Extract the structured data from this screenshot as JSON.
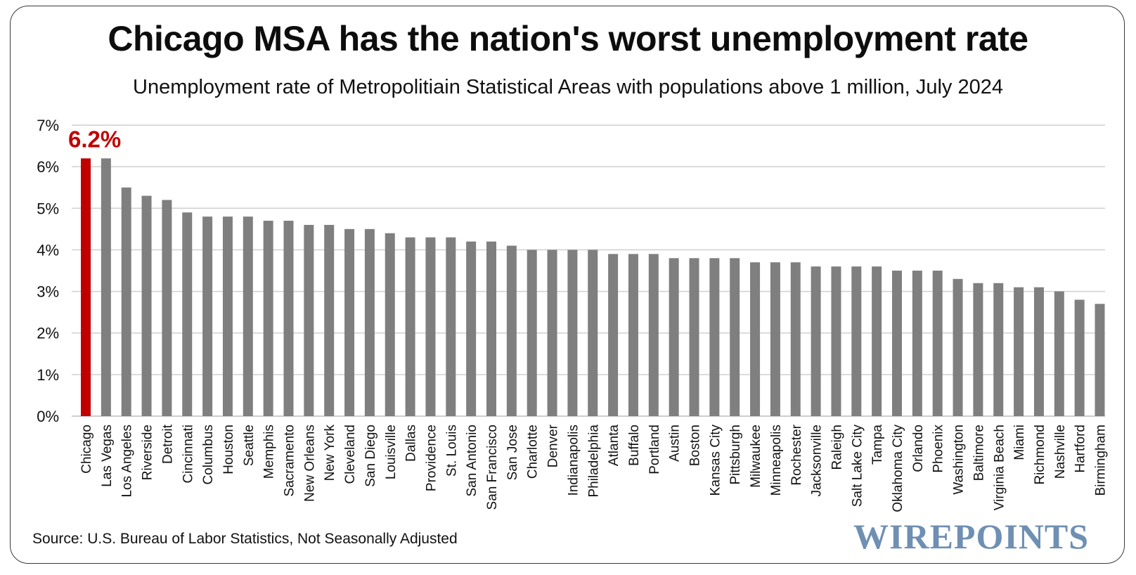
{
  "title": "Chicago MSA has the nation's worst unemployment rate",
  "subtitle": "Unemployment rate of Metropolitiain Statistical Areas with populations above 1 million, July 2024",
  "source": "Source: U.S. Bureau of Labor Statistics, Not Seasonally Adjusted",
  "logo_text": "WIREPOINTS",
  "colors": {
    "highlight": "#c00000",
    "bar": "#7f7f7f",
    "grid": "#d0d0d0",
    "logo": "#6f8fb3"
  },
  "chart_data": {
    "type": "bar",
    "title": "Chicago MSA has the nation's worst unemployment rate",
    "subtitle": "Unemployment rate of Metropolitiain Statistical Areas with populations above 1 million, July 2024",
    "xlabel": "",
    "ylabel": "",
    "ylim": [
      0,
      7
    ],
    "yticks": [
      "0%",
      "1%",
      "2%",
      "3%",
      "4%",
      "5%",
      "6%",
      "7%"
    ],
    "grid": true,
    "highlight": {
      "category": "Chicago",
      "label": "6.2%"
    },
    "categories": [
      "Chicago",
      "Las Vegas",
      "Los Angeles",
      "Riverside",
      "Detroit",
      "Cincinnati",
      "Columbus",
      "Houston",
      "Seattle",
      "Memphis",
      "Sacramento",
      "New Orleans",
      "New York",
      "Cleveland",
      "San Diego",
      "Louisville",
      "Dallas",
      "Providence",
      "St. Louis",
      "San Antonio",
      "San Francisco",
      "San Jose",
      "Charlotte",
      "Denver",
      "Indianapolis",
      "Philadelphia",
      "Atlanta",
      "Buffalo",
      "Portland",
      "Austin",
      "Boston",
      "Kansas City",
      "Pittsburgh",
      "Milwaukee",
      "Minneapolis",
      "Rochester",
      "Jacksonville",
      "Raleigh",
      "Salt Lake City",
      "Tampa",
      "Oklahoma City",
      "Orlando",
      "Phoenix",
      "Washington",
      "Baltimore",
      "Virginia Beach",
      "Miami",
      "Richmond",
      "Nashville",
      "Hartford",
      "Birmingham"
    ],
    "values": [
      6.2,
      6.2,
      5.5,
      5.3,
      5.2,
      4.9,
      4.8,
      4.8,
      4.8,
      4.7,
      4.7,
      4.6,
      4.6,
      4.5,
      4.5,
      4.4,
      4.3,
      4.3,
      4.3,
      4.2,
      4.2,
      4.1,
      4.0,
      4.0,
      4.0,
      4.0,
      3.9,
      3.9,
      3.9,
      3.8,
      3.8,
      3.8,
      3.8,
      3.7,
      3.7,
      3.7,
      3.6,
      3.6,
      3.6,
      3.6,
      3.5,
      3.5,
      3.5,
      3.3,
      3.2,
      3.2,
      3.1,
      3.1,
      3.0,
      2.8,
      2.7
    ]
  }
}
